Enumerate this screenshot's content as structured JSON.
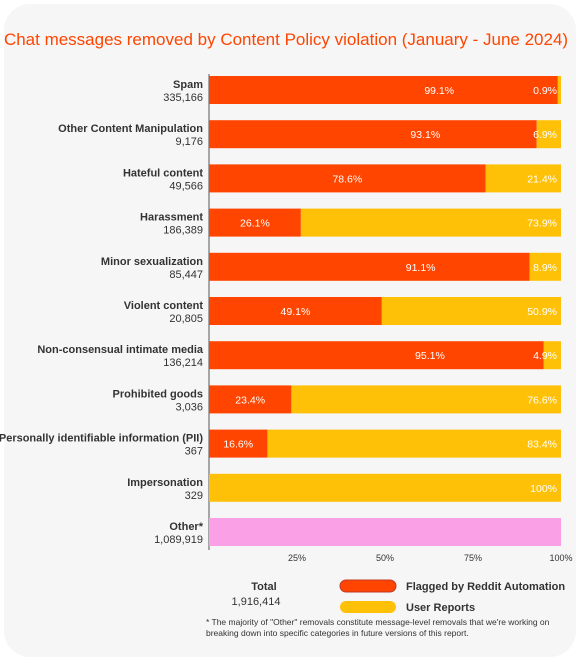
{
  "chart_data": {
    "type": "bar",
    "stacked": "horizontal-percent",
    "title": "Chat messages removed by Content Policy violation  (January - June 2024)",
    "categories": [
      {
        "name": "Spam",
        "count": "335,166"
      },
      {
        "name": "Other Content Manipulation",
        "count": "9,176"
      },
      {
        "name": "Hateful content",
        "count": "49,566"
      },
      {
        "name": "Harassment",
        "count": "186,389"
      },
      {
        "name": "Minor sexualization",
        "count": "85,447"
      },
      {
        "name": "Violent content",
        "count": "20,805"
      },
      {
        "name": "Non-consensual intimate media",
        "count": "136,214"
      },
      {
        "name": "Prohibited goods",
        "count": "3,036"
      },
      {
        "name": "Personally identifiable information (PII)",
        "count": "367"
      },
      {
        "name": "Impersonation",
        "count": "329"
      },
      {
        "name": "Other*",
        "count": "1,089,919"
      }
    ],
    "series": [
      {
        "name": "Flagged by Reddit Automation",
        "color": "#ff4500",
        "values": [
          99.1,
          93.1,
          78.6,
          26.1,
          91.1,
          49.1,
          95.1,
          23.4,
          16.6,
          0,
          null
        ],
        "labels": [
          "99.1%",
          "93.1%",
          "78.6%",
          "26.1%",
          "91.1%",
          "49.1%",
          "95.1%",
          "23.4%",
          "16.6%",
          "",
          ""
        ]
      },
      {
        "name": "User Reports",
        "color": "#ffc107",
        "values": [
          0.9,
          6.9,
          21.4,
          73.9,
          8.9,
          50.9,
          4.9,
          76.6,
          83.4,
          100,
          null
        ],
        "labels": [
          "0.9%",
          "6.9%",
          "21.4%",
          "73.9%",
          "8.9%",
          "50.9%",
          "4.9%",
          "76.6%",
          "83.4%",
          "100%",
          ""
        ]
      }
    ],
    "other_color": "#f9a0e6",
    "xlim": [
      0,
      100
    ],
    "xticks": [
      "25%",
      "50%",
      "75%",
      "100%"
    ],
    "xtick_values": [
      25,
      50,
      75,
      100
    ],
    "total_label": "Total",
    "total_value": "1,916,414",
    "footnote": "* The majority of \"Other\" removals constitute message-level removals that we're working on breaking down into specific categories in future versions of this report."
  }
}
